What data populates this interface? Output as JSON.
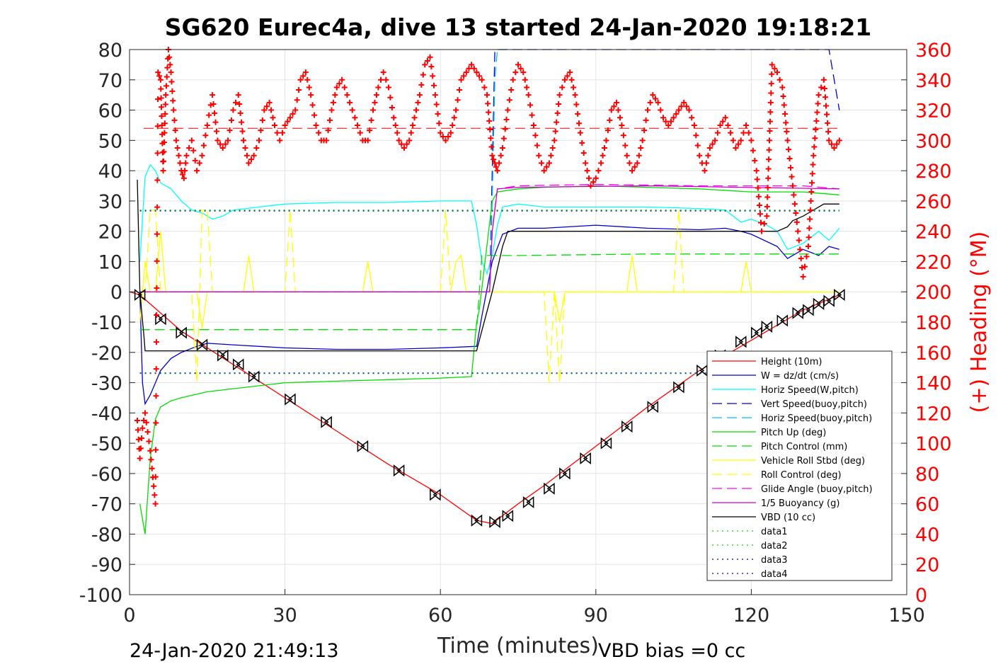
{
  "chart_data": {
    "type": "line",
    "title": "SG620 Eurec4a, dive 13 started 24-Jan-2020 19:18:21",
    "xlabel": "Time (minutes)",
    "ylabel": "",
    "y2label": "(+) Heading (°M)",
    "xlim": [
      0,
      150
    ],
    "ylim": [
      -100,
      80
    ],
    "y2lim": [
      0,
      360
    ],
    "x_ticks": [
      0,
      30,
      60,
      90,
      120,
      150
    ],
    "y_ticks": [
      80,
      70,
      60,
      50,
      40,
      30,
      20,
      10,
      0,
      -10,
      -20,
      -30,
      -40,
      -50,
      -60,
      -70,
      -80,
      -90,
      -100
    ],
    "y2_ticks": [
      360,
      340,
      320,
      300,
      280,
      260,
      240,
      220,
      200,
      180,
      160,
      140,
      120,
      100,
      80,
      60,
      40,
      20,
      0
    ],
    "grid": true,
    "legend_position": "bottom-right",
    "footer_left": "24-Jan-2020 21:49:13",
    "footer_right": "VBD bias =0 cc",
    "legend": [
      {
        "name": "Height (10m)",
        "color": "#ff0000",
        "dash": "solid"
      },
      {
        "name": "W = dz/dt (cm/s)",
        "color": "#0000cc",
        "dash": "solid"
      },
      {
        "name": "Horiz Speed(W,pitch)",
        "color": "#00ffff",
        "dash": "solid"
      },
      {
        "name": "Vert Speed(buoy,pitch)",
        "color": "#0000cc",
        "dash": "dashed"
      },
      {
        "name": "Horiz Speed(buoy,pitch)",
        "color": "#00bfff",
        "dash": "dashed"
      },
      {
        "name": "Pitch Up (deg)",
        "color": "#00dd00",
        "dash": "solid"
      },
      {
        "name": "Pitch Control (mm)",
        "color": "#00dd00",
        "dash": "dashed"
      },
      {
        "name": "Vehicle Roll Stbd (deg)",
        "color": "#ffff00",
        "dash": "solid"
      },
      {
        "name": "Roll Control (deg)",
        "color": "#ffff00",
        "dash": "dashed"
      },
      {
        "name": "Glide Angle (buoy,pitch)",
        "color": "#ff00ff",
        "dash": "dashed"
      },
      {
        "name": "1/5 Buoyancy (g)",
        "color": "#cc00cc",
        "dash": "solid"
      },
      {
        "name": "VBD (10 cc)",
        "color": "#000000",
        "dash": "solid"
      },
      {
        "name": "data1",
        "color": "#00dd00",
        "dash": "dotted"
      },
      {
        "name": "data2",
        "color": "#00dd00",
        "dash": "dotted"
      },
      {
        "name": "data3",
        "color": "#000080",
        "dash": "dotted"
      },
      {
        "name": "data4",
        "color": "#0000cc",
        "dash": "dotted"
      }
    ],
    "series": [
      {
        "name": "Height (10m)",
        "color": "#ff0000",
        "dash": "solid",
        "x": [
          0,
          2,
          10,
          20,
          30,
          40,
          50,
          60,
          67,
          70,
          75,
          80,
          90,
          100,
          110,
          120,
          130,
          137
        ],
        "y": [
          0,
          -1,
          -13,
          -24,
          -35,
          -46,
          -57,
          -67,
          -75.5,
          -76.5,
          -70,
          -64,
          -51,
          -38,
          -26,
          -16,
          -6,
          -1
        ]
      },
      {
        "name": "W = dz/dt (cm/s)",
        "color": "#0000cc",
        "dash": "solid",
        "x": [
          2,
          2.5,
          3,
          4,
          5,
          6,
          8,
          10,
          13,
          15,
          20,
          30,
          40,
          50,
          60,
          67,
          68,
          70,
          72,
          75,
          80,
          90,
          100,
          110,
          115,
          118,
          120,
          125,
          127,
          130,
          133,
          135,
          137
        ],
        "y": [
          0,
          -30,
          -37,
          -34,
          -30,
          -26,
          -22,
          -20,
          -18,
          -17,
          -17.5,
          -18.5,
          -19,
          -19,
          -18.5,
          -18,
          -8,
          10,
          19,
          21,
          21,
          22,
          21,
          20.5,
          21,
          20,
          19,
          15,
          11,
          14,
          12,
          15,
          14
        ]
      },
      {
        "name": "Horiz Speed(W,pitch)",
        "color": "#00ffff",
        "dash": "solid",
        "x": [
          2,
          3,
          4,
          5,
          6,
          8,
          10,
          12,
          14,
          16,
          18,
          20,
          25,
          30,
          40,
          50,
          60,
          66,
          67,
          68,
          69,
          70,
          71,
          72,
          75,
          80,
          90,
          100,
          110,
          115,
          118,
          120,
          123,
          125,
          127,
          130,
          133,
          135,
          137
        ],
        "y": [
          10,
          38,
          42,
          40,
          36,
          34,
          30,
          27,
          26,
          24,
          25,
          27,
          28,
          29,
          29.5,
          29.5,
          30,
          30,
          22,
          10,
          6,
          12,
          22,
          28,
          29,
          28,
          28,
          28,
          27.5,
          27,
          23,
          24,
          22,
          20,
          14,
          16,
          20,
          17,
          21
        ]
      },
      {
        "name": "Vert Speed(buoy,pitch)",
        "color": "#0000cc",
        "dash": "dashed",
        "x": [
          2,
          3,
          10,
          30,
          60,
          69.5,
          70,
          70.5,
          71,
          100,
          130,
          135,
          137
        ],
        "y": [
          0,
          0,
          0,
          0,
          0,
          0,
          40,
          80,
          80,
          80,
          80,
          80,
          60
        ]
      },
      {
        "name": "Horiz Speed(buoy,pitch)",
        "color": "#00bfff",
        "dash": "dashed",
        "x": [
          2,
          30,
          60,
          69.5,
          70,
          70.5,
          71,
          73
        ],
        "y": [
          0,
          0,
          0,
          0,
          30,
          70,
          80,
          80
        ]
      },
      {
        "name": "Pitch Up (deg)",
        "color": "#00dd00",
        "dash": "solid",
        "x": [
          2,
          3,
          4,
          5,
          6,
          8,
          10,
          15,
          20,
          30,
          40,
          50,
          60,
          66,
          67,
          67.5,
          70,
          71,
          75,
          80,
          90,
          100,
          110,
          120,
          130,
          137
        ],
        "y": [
          -70,
          -80,
          -55,
          -42,
          -38,
          -36,
          -35,
          -33,
          -32,
          -30,
          -29.5,
          -29,
          -28.5,
          -28,
          -10,
          -6,
          30,
          33,
          34,
          34.5,
          35,
          34.5,
          34,
          33,
          33,
          32
        ]
      },
      {
        "name": "Pitch Control (mm)",
        "color": "#00dd00",
        "dash": "dashed",
        "x": [
          2,
          10,
          30,
          60,
          67,
          68,
          75,
          100,
          130,
          137
        ],
        "y": [
          -12.5,
          -12.5,
          -12.5,
          -12.5,
          -12.5,
          12,
          12,
          12.5,
          12.5,
          12.5
        ]
      },
      {
        "name": "Vehicle Roll Stbd (deg)",
        "color": "#ffff00",
        "dash": "solid",
        "x": [
          2,
          3,
          4,
          5,
          6,
          7,
          8,
          9,
          10,
          12,
          13,
          14,
          15,
          20,
          22,
          23,
          24,
          30,
          40,
          45,
          46,
          47,
          48,
          55,
          60,
          62,
          63,
          64,
          65,
          70,
          80,
          82,
          83,
          84,
          90,
          95,
          96,
          97,
          98,
          105,
          110,
          115,
          118,
          119,
          120,
          125,
          130,
          135,
          137
        ],
        "y": [
          -10,
          10,
          0,
          0,
          20,
          0,
          0,
          0,
          0,
          0,
          0,
          -12,
          0,
          0,
          0,
          12,
          0,
          0,
          0,
          0,
          10,
          0,
          0,
          0,
          0,
          0,
          10,
          12,
          0,
          0,
          0,
          0,
          -10,
          0,
          0,
          0,
          0,
          12,
          0,
          0,
          0,
          0,
          0,
          10,
          0,
          0,
          0,
          0,
          0
        ]
      },
      {
        "name": "Roll Control (deg)",
        "color": "#ffff00",
        "dash": "dashed",
        "x": [
          2,
          3,
          4,
          5,
          6,
          12,
          13,
          14,
          15,
          16,
          30,
          31,
          32,
          60,
          61,
          62,
          80,
          81,
          82,
          83,
          84,
          105,
          106,
          107,
          108,
          137
        ],
        "y": [
          0,
          0,
          27,
          27,
          0,
          0,
          -30,
          27,
          27,
          0,
          0,
          27,
          0,
          0,
          27,
          0,
          0,
          -30,
          0,
          -30,
          0,
          0,
          27,
          0,
          0,
          0
        ]
      },
      {
        "name": "Glide Angle (buoy,pitch)",
        "color": "#ff00ff",
        "dash": "dashed",
        "x": [
          2,
          10,
          30,
          60,
          69.5,
          70,
          71,
          75,
          90,
          110,
          130,
          137
        ],
        "y": [
          0,
          0,
          0,
          0,
          0,
          20,
          34,
          35,
          35.5,
          35,
          35,
          34
        ]
      },
      {
        "name": "1/5 Buoyancy (g)",
        "color": "#cc00cc",
        "dash": "solid",
        "x": [
          2,
          30,
          60,
          69.5,
          70,
          71,
          75,
          100,
          137
        ],
        "y": [
          0,
          0,
          0,
          0,
          20,
          34,
          34.5,
          35,
          34
        ]
      },
      {
        "name": "VBD (10 cc)",
        "color": "#000000",
        "dash": "solid",
        "x": [
          1.5,
          2,
          2.8,
          3,
          67,
          67.2,
          70,
          72,
          73,
          100,
          115,
          120,
          125,
          127,
          128,
          130,
          131,
          133,
          134,
          137
        ],
        "y": [
          37,
          0,
          -15,
          -19.5,
          -19.5,
          -18,
          0,
          15,
          20,
          20,
          20,
          20,
          20,
          21.5,
          23.5,
          25,
          26,
          28,
          29,
          29
        ]
      },
      {
        "name": "data1",
        "color": "#00dd00",
        "dash": "dotted",
        "x": [
          2,
          137
        ],
        "y": [
          -27,
          -27
        ]
      },
      {
        "name": "data2",
        "color": "#00dd00",
        "dash": "dotted",
        "x": [
          2,
          137
        ],
        "y": [
          27,
          27
        ]
      },
      {
        "name": "data3",
        "color": "#000080",
        "dash": "dotted",
        "x": [
          2,
          137
        ],
        "y": [
          26.7,
          26.7
        ]
      },
      {
        "name": "data4",
        "color": "#0000cc",
        "dash": "dotted",
        "x": [
          2,
          137
        ],
        "y": [
          -26.8,
          -26.8
        ]
      }
    ],
    "reference_line_y2": {
      "value": 308,
      "color": "#ff0000",
      "dash": "dashed"
    },
    "triangle_markers": {
      "x": [
        2,
        6,
        10,
        14,
        18,
        21,
        24,
        31,
        38,
        45,
        52,
        59,
        67,
        70.5,
        73,
        77,
        81,
        84,
        88,
        92,
        96,
        101,
        106,
        110.5,
        114,
        118,
        121,
        123,
        126,
        129,
        131,
        133,
        135,
        137
      ],
      "y": [
        -1,
        -9,
        -13.5,
        -17.5,
        -21,
        -24,
        -28,
        -35.5,
        -43,
        -51,
        -59,
        -67,
        -75.5,
        -76,
        -74,
        -69.5,
        -65,
        -60,
        -55,
        -50,
        -44.5,
        -38,
        -31.5,
        -26,
        -21,
        -16.5,
        -13.5,
        -11.5,
        -9.5,
        -7,
        -6,
        -4,
        -3,
        -1
      ]
    },
    "heading_series": {
      "name": "(+) Heading (°M)",
      "color": "#ff0000",
      "x": [
        1.5,
        2,
        2.5,
        3,
        4,
        5,
        5.5,
        6,
        6.5,
        7,
        7.5,
        8,
        8.5,
        9,
        9.5,
        10,
        10.5,
        11,
        12,
        13,
        14,
        15,
        16,
        17,
        18,
        19,
        20,
        21,
        22,
        23,
        24,
        25,
        26,
        27,
        28,
        29,
        30,
        31,
        32,
        33,
        34,
        35,
        36,
        37,
        38,
        39,
        40,
        41,
        42,
        43,
        44,
        45,
        46,
        47,
        48,
        49,
        50,
        51,
        52,
        53,
        54,
        55,
        56,
        57,
        58,
        59,
        60,
        61,
        62,
        63,
        64,
        65,
        66,
        67,
        68,
        69,
        70,
        70.5,
        71,
        72,
        73,
        74,
        75,
        76,
        77,
        78,
        79,
        80,
        81,
        82,
        83,
        84,
        85,
        86,
        87,
        88,
        89,
        90,
        91,
        92,
        93,
        94,
        95,
        96,
        97,
        98,
        99,
        100,
        101,
        102,
        103,
        104,
        105,
        106,
        107,
        108,
        109,
        110,
        111,
        112,
        113,
        114,
        115,
        116,
        117,
        118,
        119,
        120,
        121,
        122,
        123,
        124,
        125,
        126,
        127,
        128,
        129,
        130,
        131,
        132,
        133,
        134,
        135,
        136,
        137
      ],
      "y": [
        115,
        90,
        110,
        120,
        95,
        60,
        345,
        340,
        280,
        330,
        360,
        345,
        320,
        300,
        290,
        280,
        275,
        290,
        300,
        280,
        290,
        310,
        330,
        300,
        295,
        300,
        320,
        330,
        300,
        285,
        290,
        300,
        320,
        325,
        310,
        300,
        310,
        315,
        320,
        340,
        345,
        330,
        310,
        300,
        300,
        320,
        335,
        340,
        330,
        320,
        310,
        300,
        300,
        320,
        335,
        345,
        335,
        315,
        300,
        295,
        300,
        315,
        330,
        350,
        355,
        330,
        305,
        300,
        305,
        320,
        340,
        345,
        350,
        345,
        340,
        330,
        290,
        285,
        280,
        295,
        320,
        340,
        350,
        345,
        330,
        310,
        290,
        280,
        285,
        300,
        330,
        340,
        345,
        330,
        305,
        285,
        270,
        275,
        285,
        300,
        320,
        325,
        310,
        290,
        280,
        285,
        300,
        320,
        330,
        325,
        315,
        310,
        315,
        320,
        325,
        320,
        310,
        290,
        280,
        295,
        300,
        310,
        315,
        305,
        295,
        300,
        310,
        300,
        280,
        240,
        250,
        350,
        345,
        335,
        300,
        270,
        240,
        210,
        230,
        290,
        330,
        340,
        300,
        295,
        300
      ]
    }
  }
}
